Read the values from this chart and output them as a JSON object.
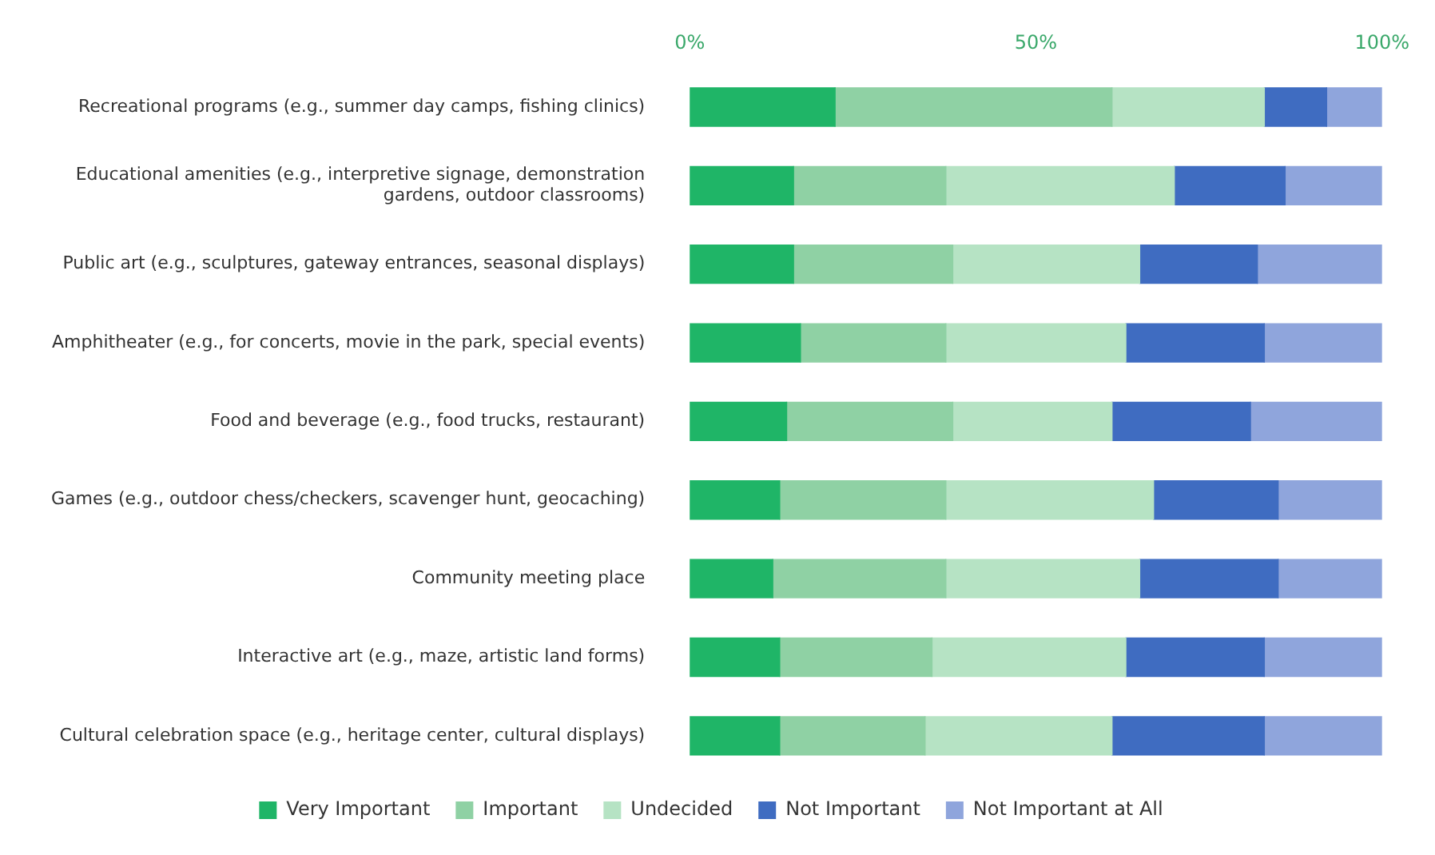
{
  "chart_data": {
    "type": "bar",
    "orientation": "horizontal",
    "stacked": true,
    "categories": [
      "Recreational programs (e.g., summer day camps, fishing clinics)",
      "Educational amenities (e.g., interpretive signage, demonstration gardens, outdoor classrooms)",
      "Public art (e.g., sculptures, gateway entrances, seasonal displays)",
      "Amphitheater (e.g., for concerts, movie in the park, special events)",
      "Food and beverage (e.g., food trucks, restaurant)",
      "Games (e.g., outdoor chess/checkers, scavenger hunt, geocaching)",
      "Community meeting place",
      "Interactive art (e.g., maze, artistic land forms)",
      "Cultural celebration space (e.g., heritage center, cultural displays)"
    ],
    "series": [
      {
        "name": "Very Important",
        "color": "#1fb567",
        "values": [
          21,
          15,
          15,
          16,
          14,
          13,
          12,
          13,
          13
        ]
      },
      {
        "name": "Important",
        "color": "#8fd1a4",
        "values": [
          40,
          22,
          23,
          21,
          24,
          24,
          25,
          22,
          21
        ]
      },
      {
        "name": "Undecided",
        "color": "#b6e3c4",
        "values": [
          22,
          33,
          27,
          26,
          23,
          30,
          28,
          28,
          27
        ]
      },
      {
        "name": "Not Important",
        "color": "#3f6cc1",
        "values": [
          9,
          16,
          17,
          20,
          20,
          18,
          20,
          20,
          22
        ]
      },
      {
        "name": "Not Important at All",
        "color": "#8fa5dc",
        "values": [
          8,
          14,
          18,
          17,
          19,
          15,
          15,
          17,
          17
        ]
      }
    ],
    "xlim": [
      0,
      100
    ],
    "xticks": [
      {
        "value": 0,
        "label": "0%"
      },
      {
        "value": 50,
        "label": "50%"
      },
      {
        "value": 100,
        "label": "100%"
      }
    ],
    "grid": false,
    "legend": "bottom"
  }
}
